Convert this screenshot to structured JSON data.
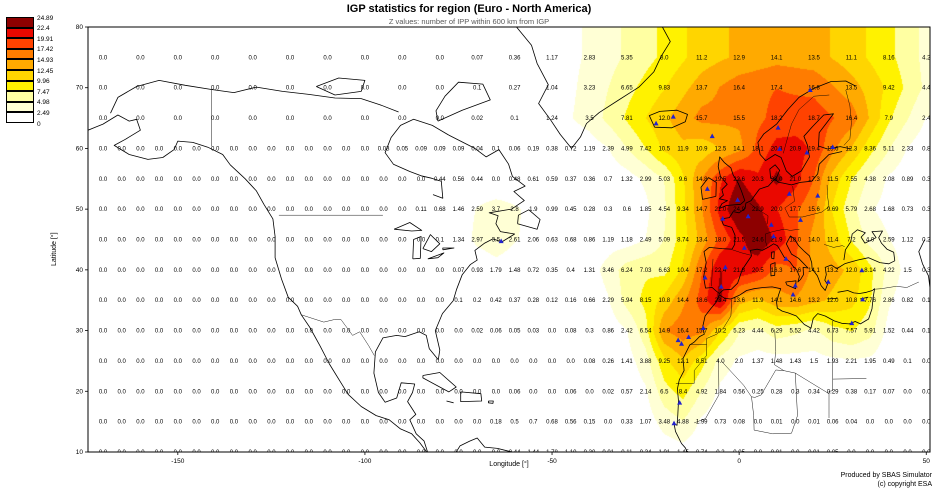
{
  "chart_data": {
    "type": "heatmap",
    "title": "IGP statistics for region (Euro - North America)",
    "subtitle": "Z values: number of IPP within 600 km from IGP",
    "xlabel": "Longitude [°]",
    "ylabel": "Latitude [°]",
    "x_ticks": [
      -150,
      -100,
      -50,
      0,
      50
    ],
    "y_ticks": [
      10,
      20,
      30,
      40,
      50,
      60,
      70,
      80
    ],
    "lon_range": [
      -174,
      51
    ],
    "lat_range": [
      10,
      80
    ],
    "colorbar": {
      "labels": [
        "24.89",
        "22.4",
        "19.91",
        "17.42",
        "14.93",
        "12.45",
        "9.96",
        "7.47",
        "4.98",
        "2.49",
        "0"
      ],
      "colors_top_to_bottom": [
        "#8d0000",
        "#ea0800",
        "#ff4200",
        "#ff7c00",
        "#ffaa00",
        "#ffd500",
        "#fff200",
        "#ffffa2",
        "#ffffd5",
        "#ffffff"
      ]
    },
    "marker_color": "#2222cc",
    "stations_lonlat": [
      [
        -22.2,
        64.1
      ],
      [
        -17.6,
        65.2
      ],
      [
        -7.2,
        62.0
      ],
      [
        -8.5,
        53.3
      ],
      [
        -0.4,
        51.5
      ],
      [
        -4.4,
        48.4
      ],
      [
        2.4,
        48.8
      ],
      [
        -3.7,
        40.4
      ],
      [
        -9.1,
        38.7
      ],
      [
        -4.8,
        37.2
      ],
      [
        1.4,
        43.6
      ],
      [
        8.6,
        47.4
      ],
      [
        9.2,
        45.5
      ],
      [
        12.5,
        41.8
      ],
      [
        15.0,
        37.4
      ],
      [
        16.4,
        48.2
      ],
      [
        13.4,
        52.5
      ],
      [
        21.0,
        52.2
      ],
      [
        10.8,
        59.9
      ],
      [
        18.1,
        59.3
      ],
      [
        10.4,
        63.4
      ],
      [
        19.0,
        69.6
      ],
      [
        25.0,
        60.2
      ],
      [
        23.8,
        38.0
      ],
      [
        32.8,
        39.9
      ],
      [
        -16.3,
        28.4
      ],
      [
        -15.4,
        27.8
      ],
      [
        -13.5,
        28.9
      ],
      [
        -9.6,
        30.4
      ],
      [
        -15.9,
        18.1
      ],
      [
        -17.4,
        14.7
      ],
      [
        14.4,
        35.9
      ],
      [
        33.0,
        35.1
      ],
      [
        30.1,
        31.2
      ],
      [
        -63.6,
        44.7
      ]
    ],
    "grid_rows": [
      {
        "lat": 75,
        "lon_start": -170,
        "lon_step": 10,
        "values": [
          "0.0",
          "0.0",
          "0.0",
          "0.0",
          "0.0",
          "0.0",
          "0.0",
          "0.0",
          "0.0",
          "0.0",
          "0.07",
          "0.36",
          "1.17",
          "2.83",
          "5.35",
          "8.0",
          "11.2",
          "12.9",
          "14.1",
          "13.5",
          "11.1",
          "8.16",
          "4.2"
        ]
      },
      {
        "lat": 70,
        "lon_start": -170,
        "lon_step": 10,
        "values": [
          "0.0",
          "0.0",
          "0.0",
          "0.0",
          "0.0",
          "0.0",
          "0.0",
          "0.0",
          "0.0",
          "0.0",
          "0.1",
          "0.27",
          "1.04",
          "3.23",
          "6.65",
          "9.83",
          "13.7",
          "16.4",
          "17.4",
          "16.8",
          "13.5",
          "9.42",
          "4.4"
        ]
      },
      {
        "lat": 65,
        "lon_start": -170,
        "lon_step": 10,
        "values": [
          "0.0",
          "0.0",
          "0.0",
          "0.0",
          "0.0",
          "0.0",
          "0.0",
          "0.0",
          "0.0",
          "0.0",
          "0.02",
          "0.1",
          "1.24",
          "3.5",
          "7.81",
          "12.0",
          "15.7",
          "15.5",
          "18.2",
          "18.7",
          "16.4",
          "7.9",
          "2.4"
        ]
      },
      {
        "lat": 60,
        "lon_start": -170,
        "lon_step": 5,
        "values": [
          "0.0",
          "0.0",
          "0.0",
          "0.0",
          "0.0",
          "0.0",
          "0.0",
          "0.0",
          "0.0",
          "0.0",
          "0.0",
          "0.0",
          "0.0",
          "0.0",
          "0.0",
          "0.03",
          "0.05",
          "0.09",
          "0.09",
          "0.09",
          "0.04",
          "0.1",
          "0.06",
          "0.19",
          "0.38",
          "0.72",
          "1.19",
          "2.39",
          "4.99",
          "7.42",
          "10.5",
          "11.9",
          "10.9",
          "12.5",
          "14.1",
          "18.1",
          "20.8",
          "20.9",
          "19.4",
          "15.6",
          "12.3",
          "8.36",
          "5.11",
          "2.33",
          "0.8"
        ]
      },
      {
        "lat": 55,
        "lon_start": -170,
        "lon_step": 5,
        "values": [
          "0.0",
          "0.0",
          "0.0",
          "0.0",
          "0.0",
          "0.0",
          "0.0",
          "0.0",
          "0.0",
          "0.0",
          "0.0",
          "0.0",
          "0.0",
          "0.0",
          "0.0",
          "0.0",
          "0.0",
          "0.0",
          "0.44",
          "0.56",
          "0.44",
          "0.0",
          "0.48",
          "0.61",
          "0.59",
          "0.37",
          "0.36",
          "0.7",
          "1.32",
          "2.99",
          "5.03",
          "9.6",
          "14.8",
          "19.5",
          "22.6",
          "20.3",
          "23.0",
          "21.0",
          "17.3",
          "11.5",
          "7.55",
          "4.38",
          "2.08",
          "0.89",
          "0.3"
        ]
      },
      {
        "lat": 50,
        "lon_start": -170,
        "lon_step": 5,
        "values": [
          "0.0",
          "0.0",
          "0.0",
          "0.0",
          "0.0",
          "0.0",
          "0.0",
          "0.0",
          "0.0",
          "0.0",
          "0.0",
          "0.0",
          "0.0",
          "0.0",
          "0.0",
          "0.0",
          "0.0",
          "0.11",
          "0.68",
          "1.46",
          "2.59",
          "3.7",
          "2.8",
          "1.9",
          "0.99",
          "0.45",
          "0.28",
          "0.3",
          "0.6",
          "1.85",
          "4.54",
          "9.34",
          "14.7",
          "21.0",
          "24.9",
          "22.9",
          "20.0",
          "17.7",
          "15.6",
          "9.69",
          "5.79",
          "2.68",
          "1.68",
          "0.73",
          "0.3"
        ]
      },
      {
        "lat": 45,
        "lon_start": -170,
        "lon_step": 5,
        "values": [
          "0.0",
          "0.0",
          "0.0",
          "0.0",
          "0.0",
          "0.0",
          "0.0",
          "0.0",
          "0.0",
          "0.0",
          "0.0",
          "0.0",
          "0.0",
          "0.0",
          "0.0",
          "0.0",
          "0.0",
          "0.0",
          "0.1",
          "1.34",
          "2.97",
          "3.5",
          "2.61",
          "2.06",
          "0.63",
          "0.68",
          "0.86",
          "1.19",
          "1.18",
          "2.49",
          "5.09",
          "8.74",
          "13.4",
          "18.0",
          "21.5",
          "24.6",
          "21.9",
          "18.0",
          "14.0",
          "11.4",
          "7.2",
          "4.0",
          "2.59",
          "1.12",
          "0.2"
        ]
      },
      {
        "lat": 40,
        "lon_start": -170,
        "lon_step": 5,
        "values": [
          "0.0",
          "0.0",
          "0.0",
          "0.0",
          "0.0",
          "0.0",
          "0.0",
          "0.0",
          "0.0",
          "0.0",
          "0.0",
          "0.0",
          "0.0",
          "0.0",
          "0.0",
          "0.0",
          "0.0",
          "0.0",
          "0.0",
          "0.07",
          "0.93",
          "1.79",
          "1.48",
          "0.72",
          "0.35",
          "0.4",
          "1.31",
          "3.46",
          "6.24",
          "7.03",
          "6.63",
          "10.4",
          "17.2",
          "22.4",
          "21.8",
          "20.5",
          "16.3",
          "17.6",
          "14.1",
          "13.2",
          "12.0",
          "8.14",
          "4.22",
          "1.5",
          "0.3"
        ]
      },
      {
        "lat": 35,
        "lon_start": -170,
        "lon_step": 5,
        "values": [
          "0.0",
          "0.0",
          "0.0",
          "0.0",
          "0.0",
          "0.0",
          "0.0",
          "0.0",
          "0.0",
          "0.0",
          "0.0",
          "0.0",
          "0.0",
          "0.0",
          "0.0",
          "0.0",
          "0.0",
          "0.0",
          "0.0",
          "0.1",
          "0.2",
          "0.42",
          "0.37",
          "0.28",
          "0.12",
          "0.16",
          "0.66",
          "2.29",
          "5.94",
          "8.15",
          "10.8",
          "14.4",
          "18.6",
          "23.4",
          "13.6",
          "11.9",
          "14.1",
          "14.6",
          "13.2",
          "12.0",
          "10.8",
          "7.76",
          "2.86",
          "0.82",
          "0.1"
        ]
      },
      {
        "lat": 30,
        "lon_start": -170,
        "lon_step": 5,
        "values": [
          "0.0",
          "0.0",
          "0.0",
          "0.0",
          "0.0",
          "0.0",
          "0.0",
          "0.0",
          "0.0",
          "0.0",
          "0.0",
          "0.0",
          "0.0",
          "0.0",
          "0.0",
          "0.0",
          "0.0",
          "0.0",
          "0.0",
          "0.0",
          "0.02",
          "0.06",
          "0.05",
          "0.03",
          "0.0",
          "0.08",
          "0.3",
          "0.86",
          "2.42",
          "6.54",
          "14.9",
          "16.4",
          "15.7",
          "10.2",
          "5.23",
          "4.44",
          "6.29",
          "5.52",
          "4.42",
          "6.73",
          "7.57",
          "5.91",
          "1.52",
          "0.44",
          "0.1"
        ]
      },
      {
        "lat": 25,
        "lon_start": -170,
        "lon_step": 5,
        "values": [
          "0.0",
          "0.0",
          "0.0",
          "0.0",
          "0.0",
          "0.0",
          "0.0",
          "0.0",
          "0.0",
          "0.0",
          "0.0",
          "0.0",
          "0.0",
          "0.0",
          "0.0",
          "0.0",
          "0.0",
          "0.0",
          "0.0",
          "0.0",
          "0.0",
          "0.0",
          "0.0",
          "0.0",
          "0.0",
          "0.0",
          "0.08",
          "0.26",
          "1.41",
          "3.88",
          "9.25",
          "12.1",
          "8.51",
          "4.0",
          "2.0",
          "1.37",
          "1.48",
          "1.43",
          "1.5",
          "1.93",
          "2.21",
          "1.95",
          "0.49",
          "0.1",
          "0.0"
        ]
      },
      {
        "lat": 20,
        "lon_start": -170,
        "lon_step": 5,
        "values": [
          "0.0",
          "0.0",
          "0.0",
          "0.0",
          "0.0",
          "0.0",
          "0.0",
          "0.0",
          "0.0",
          "0.0",
          "0.0",
          "0.0",
          "0.0",
          "0.0",
          "0.0",
          "0.0",
          "0.0",
          "0.0",
          "0.0",
          "0.0",
          "0.0",
          "0.0",
          "0.06",
          "0.0",
          "0.0",
          "0.06",
          "0.0",
          "0.02",
          "0.57",
          "2.14",
          "6.5",
          "8.4",
          "4.92",
          "1.84",
          "0.56",
          "0.25",
          "0.28",
          "0.3",
          "0.34",
          "0.29",
          "0.38",
          "0.17",
          "0.07",
          "0.0",
          "0.0"
        ]
      },
      {
        "lat": 15,
        "lon_start": -170,
        "lon_step": 5,
        "values": [
          "0.0",
          "0.0",
          "0.0",
          "0.0",
          "0.0",
          "0.0",
          "0.0",
          "0.0",
          "0.0",
          "0.0",
          "0.0",
          "0.0",
          "0.0",
          "0.0",
          "0.0",
          "0.0",
          "0.0",
          "0.0",
          "0.0",
          "0.0",
          "0.0",
          "0.18",
          "0.5",
          "0.7",
          "0.68",
          "0.56",
          "0.15",
          "0.0",
          "0.33",
          "1.07",
          "3.48",
          "4.88",
          "1.99",
          "0.73",
          "0.08",
          "0.0",
          "0.01",
          "0.0",
          "0.01",
          "0.06",
          "0.04",
          "0.0",
          "0.0",
          "0.0",
          "0.0"
        ]
      },
      {
        "lat": 10,
        "lon_start": -170,
        "lon_step": 5,
        "values": [
          "0.0",
          "0.0",
          "0.0",
          "0.0",
          "0.0",
          "0.0",
          "0.0",
          "0.0",
          "0.0",
          "0.0",
          "0.0",
          "0.0",
          "0.0",
          "0.0",
          "0.0",
          "0.0",
          "0.0",
          "0.0",
          "0.0",
          "0.0",
          "0.0",
          "0.0",
          "0.44",
          "1.44",
          "1.78",
          "1.10",
          "0.30",
          "0.01",
          "0.11",
          "0.34",
          "1.01",
          "1.45",
          "0.74",
          "0.2",
          "0.05",
          "0.0",
          "0.01",
          "0.0",
          "0.01",
          "0.05",
          "0.0",
          "0.0",
          "0.0",
          "0.0",
          "0.0"
        ]
      }
    ]
  },
  "attribution": {
    "line1": "Produced by SBAS Simulator",
    "line2": "(c) copyright ESA"
  }
}
